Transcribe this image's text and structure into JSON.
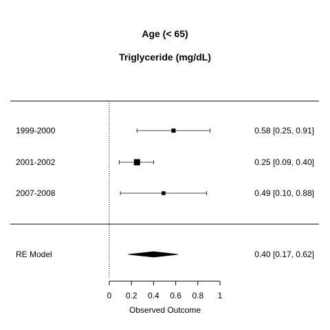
{
  "chart_data": {
    "type": "forest",
    "title": "Age (< 65)",
    "subtitle": "Triglyceride (mg/dL)",
    "xlabel": "Observed Outcome",
    "xlim": [
      0,
      1
    ],
    "xticks": [
      "0",
      "0.2",
      "0.4",
      "0.6",
      "0.8",
      "1"
    ],
    "reference_line": 0,
    "studies": [
      {
        "label": "1999-2000",
        "estimate": 0.58,
        "lower": 0.25,
        "upper": 0.91,
        "weight": 0.2,
        "text": "0.58 [0.25, 0.91]"
      },
      {
        "label": "2001-2002",
        "estimate": 0.25,
        "lower": 0.09,
        "upper": 0.4,
        "weight": 0.6,
        "text": "0.25 [0.09, 0.40]"
      },
      {
        "label": "2007-2008",
        "estimate": 0.49,
        "lower": 0.1,
        "upper": 0.88,
        "weight": 0.15,
        "text": "0.49 [0.10, 0.88]"
      }
    ],
    "summary": {
      "label": "RE Model",
      "estimate": 0.4,
      "lower": 0.17,
      "upper": 0.62,
      "text": "0.40 [0.17, 0.62]"
    }
  }
}
